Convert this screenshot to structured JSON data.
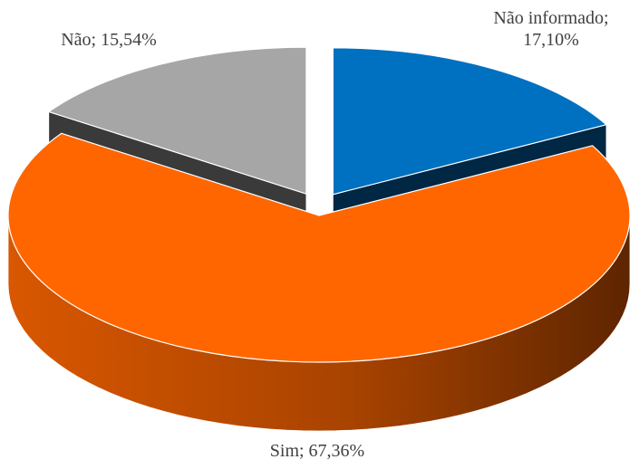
{
  "chart_data": {
    "type": "pie",
    "values": [
      17.1,
      67.36,
      15.54
    ],
    "value_labels": [
      "Não informado; 17,10%",
      "Sim; 67,36%",
      "Não; 15,54%"
    ],
    "colors": [
      "#0070c0",
      "#ff6600",
      "#a6a6a6"
    ],
    "exploded": [
      true,
      false,
      true
    ]
  }
}
